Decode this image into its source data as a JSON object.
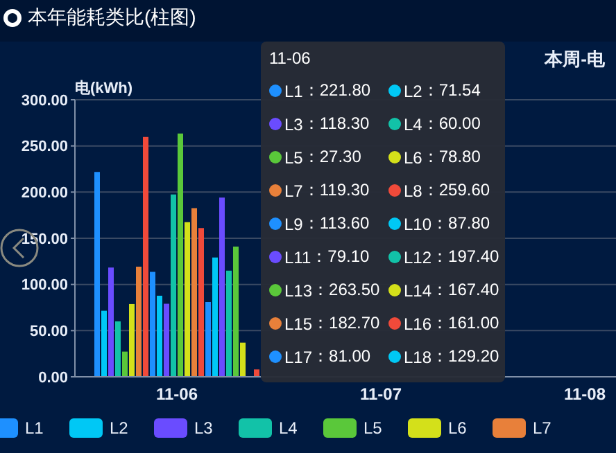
{
  "chart_data": {
    "type": "bar",
    "title": "本年能耗类比(柱图)",
    "subtitle": "本周-电",
    "ylabel": "电(kWh)",
    "annotations": [
      "11-06",
      "：221.80",
      "：71.54",
      "：118.30",
      "：60.00",
      "：27.30",
      "：78.80",
      "：119.30",
      "：259.60",
      "：113.60",
      "：87.80",
      "：79.10",
      "：197.40",
      "：263.50",
      "：167.40",
      "：182.70",
      "：161.00",
      "：81.00",
      "：129.20"
    ],
    "categories": [
      "11-06",
      "11-07",
      "11-08"
    ],
    "ylim": [
      0,
      300
    ],
    "yticks": [
      {
        "value": 0,
        "label": "0.00"
      },
      {
        "value": 50,
        "label": "50.00"
      },
      {
        "value": 100,
        "label": "100.00"
      },
      {
        "value": 150,
        "label": "150.00"
      },
      {
        "value": 200,
        "label": "200.00"
      },
      {
        "value": 250,
        "label": "250.00"
      },
      {
        "value": 300,
        "label": "300.00"
      }
    ],
    "grid": "y",
    "legend": "bottom",
    "series": [
      {
        "name": "L1",
        "color": "#1e90ff",
        "values": [
          221.8,
          null,
          null
        ]
      },
      {
        "name": "L2",
        "color": "#00c8f5",
        "values": [
          71.54,
          null,
          null
        ]
      },
      {
        "name": "L3",
        "color": "#6a4cff",
        "values": [
          118.3,
          null,
          null
        ]
      },
      {
        "name": "L4",
        "color": "#12c2a8",
        "values": [
          60,
          null,
          null
        ]
      },
      {
        "name": "L5",
        "color": "#5ac83a",
        "values": [
          27.3,
          null,
          null
        ]
      },
      {
        "name": "L6",
        "color": "#d4e01a",
        "values": [
          78.8,
          null,
          null
        ]
      },
      {
        "name": "L7",
        "color": "#e8803a",
        "values": [
          119.3,
          null,
          null
        ]
      },
      {
        "name": "L8",
        "color": "#f04a3a",
        "values": [
          259.6,
          null,
          null
        ]
      },
      {
        "name": "L9",
        "color": "#1e90ff",
        "values": [
          113.6,
          null,
          null
        ]
      },
      {
        "name": "L10",
        "color": "#00c8f5",
        "values": [
          87.8,
          null,
          null
        ]
      },
      {
        "name": "L11",
        "color": "#6a4cff",
        "values": [
          79.1,
          null,
          null
        ]
      },
      {
        "name": "L12",
        "color": "#12c2a8",
        "values": [
          197.4,
          null,
          null
        ]
      },
      {
        "name": "L13",
        "color": "#5ac83a",
        "values": [
          263.5,
          null,
          null
        ]
      },
      {
        "name": "L14",
        "color": "#d4e01a",
        "values": [
          167.4,
          null,
          null
        ]
      },
      {
        "name": "L15",
        "color": "#e8803a",
        "values": [
          182.7,
          null,
          null
        ]
      },
      {
        "name": "L16",
        "color": "#f04a3a",
        "values": [
          161,
          null,
          null
        ]
      },
      {
        "name": "L17",
        "color": "#1e90ff",
        "values": [
          81,
          null,
          null
        ]
      },
      {
        "name": "L18",
        "color": "#00c8f5",
        "values": [
          129.2,
          null,
          null
        ]
      },
      {
        "color": "#6a4cff",
        "values": [
          194,
          null,
          null
        ]
      },
      {
        "color": "#12c2a8",
        "values": [
          115,
          null,
          null
        ]
      },
      {
        "color": "#5ac83a",
        "values": [
          141,
          null,
          null
        ]
      },
      {
        "color": "#d4e01a",
        "values": [
          37,
          null,
          null
        ]
      },
      {
        "color": "#e8803a",
        "values": [
          null,
          null,
          null
        ]
      },
      {
        "color": "#f04a3a",
        "values": [
          8,
          null,
          null
        ]
      }
    ]
  }
}
